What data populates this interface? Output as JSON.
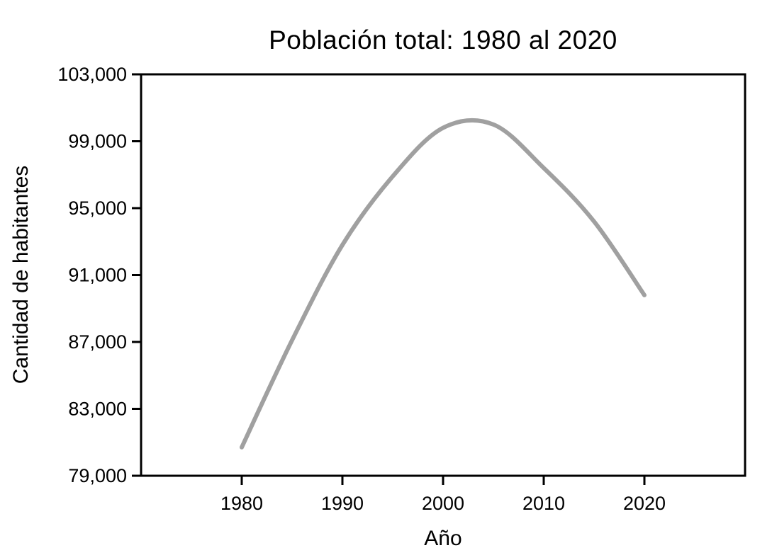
{
  "chart_data": {
    "type": "line",
    "title": "Población total: 1980 al 2020",
    "xlabel": "Año",
    "ylabel": "Cantidad de habitantes",
    "xlim": [
      1970,
      2030
    ],
    "ylim": [
      79000,
      103000
    ],
    "grid": false,
    "legend": "none",
    "background_color": "#ffffff",
    "axis_color": "#000000",
    "line_color": "#a0a0a0",
    "line_width": 6,
    "x_ticks": [
      {
        "value": 1980,
        "label": "1980"
      },
      {
        "value": 1990,
        "label": "1990"
      },
      {
        "value": 2000,
        "label": "2000"
      },
      {
        "value": 2010,
        "label": "2010"
      },
      {
        "value": 2020,
        "label": "2020"
      }
    ],
    "y_ticks": [
      {
        "value": 79000,
        "label": "79,000"
      },
      {
        "value": 83000,
        "label": "83,000"
      },
      {
        "value": 87000,
        "label": "87,000"
      },
      {
        "value": 91000,
        "label": "91,000"
      },
      {
        "value": 95000,
        "label": "95,000"
      },
      {
        "value": 99000,
        "label": "99,000"
      },
      {
        "value": 103000,
        "label": "103,000"
      }
    ],
    "x": [
      1980,
      1985,
      1990,
      1995,
      2000,
      2005,
      2010,
      2015,
      2020
    ],
    "y": [
      80700,
      87100,
      92800,
      96900,
      99800,
      100000,
      97400,
      94200,
      89800
    ],
    "approx_peak": {
      "x": 2002.5,
      "y": 100400
    }
  }
}
